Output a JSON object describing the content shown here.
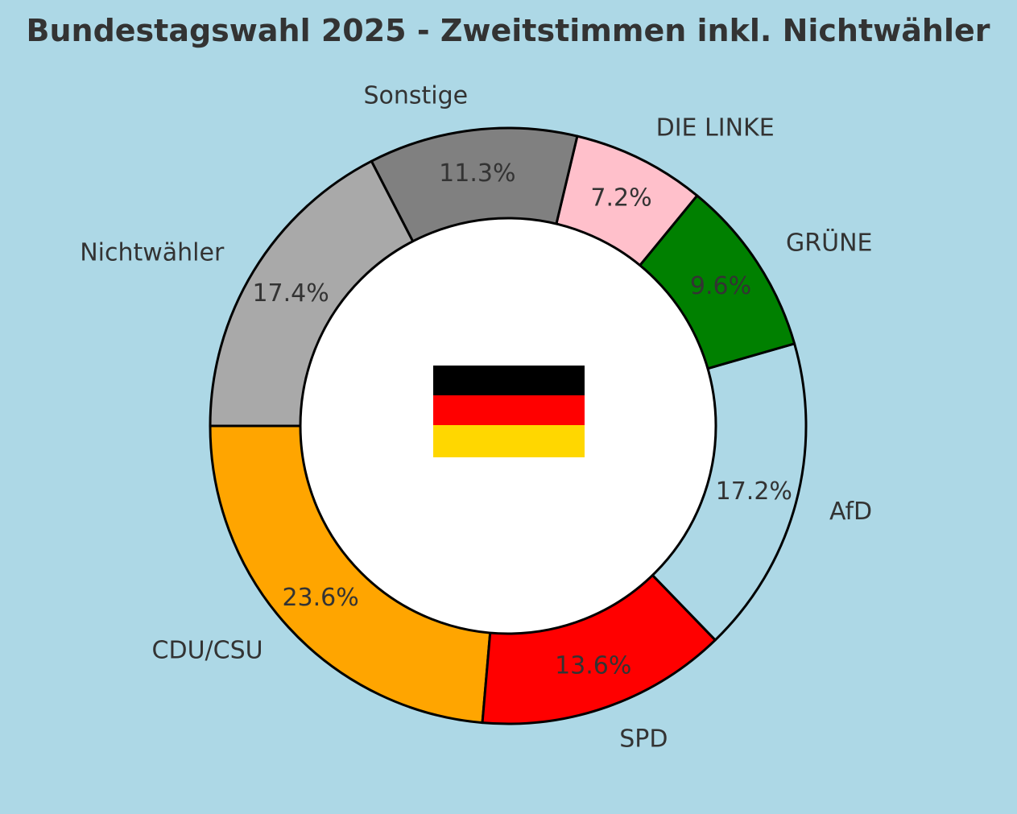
{
  "chart_data": {
    "type": "pie",
    "variant": "donut",
    "title": "Bundestagswahl 2025 - Zweitstimmen inkl. Nichtwähler",
    "start_angle_deg": 180,
    "direction": "counterclockwise",
    "categories": [
      "CDU/CSU",
      "SPD",
      "AfD",
      "GRÜNE",
      "DIE LINKE",
      "Sonstige",
      "Nichtwähler"
    ],
    "values": [
      23.6,
      13.6,
      17.2,
      9.6,
      7.2,
      11.3,
      17.4
    ],
    "value_labels": [
      "23.6%",
      "13.6%",
      "17.2%",
      "9.6%",
      "7.2%",
      "11.3%",
      "17.4%"
    ],
    "colors": [
      "#ffa500",
      "#ff0000",
      "#add8e6",
      "#008000",
      "#ffc0cb",
      "#808080",
      "#a9a9a9"
    ],
    "edge_color": "#000000",
    "center_color": "#ffffff",
    "center_emblem": {
      "name": "german-flag",
      "stripe_colors": [
        "#000000",
        "#ff0000",
        "#ffd700"
      ]
    },
    "background": "#add8e6",
    "text_color": "#333333"
  }
}
